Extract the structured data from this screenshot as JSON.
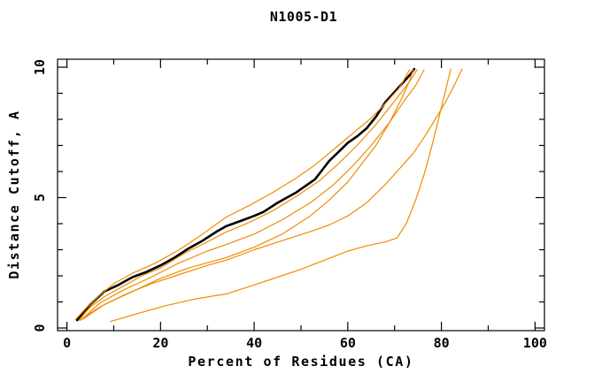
{
  "colors": {
    "background": "#ffffff",
    "axis": "#000000",
    "highlight_series": "#000000",
    "comparison_series": "#f08c00"
  },
  "chart_data": {
    "type": "line",
    "title": "N1005-D1",
    "xlabel": "Percent of Residues (CA)",
    "ylabel": "Distance Cutoff, A",
    "xlim": [
      -2,
      102
    ],
    "ylim": [
      -0.1,
      10.3
    ],
    "grid": false,
    "legend": "none",
    "xticks_major": [
      0,
      20,
      40,
      60,
      80,
      100
    ],
    "xticks_minor": [
      10,
      30,
      50,
      70,
      90
    ],
    "yticks_major": [
      0,
      5,
      10
    ],
    "yticks_minor": [
      1,
      2,
      3,
      4,
      6,
      7,
      8,
      9
    ],
    "series": [
      {
        "name": "highlight-model-black",
        "color": "#000000",
        "width": 2.6,
        "points": [
          [
            2.2,
            0.3
          ],
          [
            3.5,
            0.6
          ],
          [
            5,
            0.9
          ],
          [
            6.5,
            1.15
          ],
          [
            8,
            1.4
          ],
          [
            11,
            1.65
          ],
          [
            14,
            1.95
          ],
          [
            17,
            2.15
          ],
          [
            20,
            2.4
          ],
          [
            23,
            2.7
          ],
          [
            26,
            3.05
          ],
          [
            29,
            3.35
          ],
          [
            32,
            3.7
          ],
          [
            34,
            3.9
          ],
          [
            37,
            4.1
          ],
          [
            40,
            4.3
          ],
          [
            42,
            4.45
          ],
          [
            45,
            4.8
          ],
          [
            47,
            5.0
          ],
          [
            49,
            5.2
          ],
          [
            51,
            5.45
          ],
          [
            53,
            5.7
          ],
          [
            54.5,
            6.05
          ],
          [
            56,
            6.4
          ],
          [
            58,
            6.75
          ],
          [
            60,
            7.1
          ],
          [
            62,
            7.35
          ],
          [
            64,
            7.65
          ],
          [
            66,
            8.1
          ],
          [
            68,
            8.65
          ],
          [
            70,
            9.05
          ],
          [
            72,
            9.45
          ],
          [
            73.5,
            9.75
          ],
          [
            74.2,
            9.93
          ]
        ]
      },
      {
        "name": "comparison-model-1",
        "color": "#f08c00",
        "width": 1.2,
        "points": [
          [
            1.8,
            0.32
          ],
          [
            4,
            0.75
          ],
          [
            7,
            1.25
          ],
          [
            10,
            1.7
          ],
          [
            14,
            2.1
          ],
          [
            19,
            2.5
          ],
          [
            24,
            3.0
          ],
          [
            29,
            3.6
          ],
          [
            34,
            4.25
          ],
          [
            39,
            4.7
          ],
          [
            44,
            5.2
          ],
          [
            49,
            5.75
          ],
          [
            53,
            6.25
          ],
          [
            57,
            6.85
          ],
          [
            61,
            7.45
          ],
          [
            65,
            8.05
          ],
          [
            68,
            8.6
          ],
          [
            71,
            9.2
          ],
          [
            73.2,
            9.9
          ]
        ]
      },
      {
        "name": "comparison-model-2",
        "color": "#f08c00",
        "width": 1.2,
        "points": [
          [
            2.5,
            0.28
          ],
          [
            5,
            0.8
          ],
          [
            8,
            1.2
          ],
          [
            12,
            1.6
          ],
          [
            16,
            2.0
          ],
          [
            20,
            2.3
          ],
          [
            25,
            2.85
          ],
          [
            30,
            3.3
          ],
          [
            34,
            3.68
          ],
          [
            39,
            4.05
          ],
          [
            44,
            4.5
          ],
          [
            49,
            5.05
          ],
          [
            54,
            5.65
          ],
          [
            58,
            6.3
          ],
          [
            62,
            7.0
          ],
          [
            66,
            7.8
          ],
          [
            70,
            8.7
          ],
          [
            73,
            9.4
          ],
          [
            74.8,
            9.9
          ]
        ]
      },
      {
        "name": "comparison-model-3",
        "color": "#f08c00",
        "width": 1.2,
        "points": [
          [
            3,
            0.3
          ],
          [
            7,
            0.95
          ],
          [
            12,
            1.45
          ],
          [
            18,
            1.95
          ],
          [
            24,
            2.5
          ],
          [
            30,
            2.95
          ],
          [
            34,
            3.2
          ],
          [
            40,
            3.6
          ],
          [
            46,
            4.15
          ],
          [
            52,
            4.8
          ],
          [
            57,
            5.5
          ],
          [
            61,
            6.2
          ],
          [
            65,
            7.0
          ],
          [
            69,
            7.9
          ],
          [
            72,
            8.7
          ],
          [
            74.5,
            9.3
          ],
          [
            76.3,
            9.9
          ]
        ]
      },
      {
        "name": "comparison-model-4",
        "color": "#f08c00",
        "width": 1.2,
        "points": [
          [
            3.5,
            0.35
          ],
          [
            8,
            0.9
          ],
          [
            14,
            1.4
          ],
          [
            20,
            1.9
          ],
          [
            26,
            2.3
          ],
          [
            31,
            2.55
          ],
          [
            34,
            2.7
          ],
          [
            40,
            3.1
          ],
          [
            46,
            3.6
          ],
          [
            52,
            4.3
          ],
          [
            56,
            4.9
          ],
          [
            60,
            5.6
          ],
          [
            63,
            6.3
          ],
          [
            66,
            7.0
          ],
          [
            69,
            7.9
          ],
          [
            71.5,
            8.8
          ],
          [
            73,
            9.4
          ],
          [
            74,
            9.9
          ]
        ]
      },
      {
        "name": "comparison-model-5",
        "color": "#f08c00",
        "width": 1.2,
        "points": [
          [
            2.8,
            0.3
          ],
          [
            7,
            0.8
          ],
          [
            12,
            1.25
          ],
          [
            18,
            1.7
          ],
          [
            24,
            2.05
          ],
          [
            30,
            2.4
          ],
          [
            34,
            2.6
          ],
          [
            40,
            3.0
          ],
          [
            46,
            3.35
          ],
          [
            52,
            3.7
          ],
          [
            56,
            3.95
          ],
          [
            60,
            4.3
          ],
          [
            64,
            4.8
          ],
          [
            68,
            5.5
          ],
          [
            71,
            6.1
          ],
          [
            74,
            6.7
          ],
          [
            77,
            7.5
          ],
          [
            79,
            8.1
          ],
          [
            81,
            8.7
          ],
          [
            83,
            9.4
          ],
          [
            84.4,
            9.93
          ]
        ]
      },
      {
        "name": "comparison-model-6",
        "color": "#f08c00",
        "width": 1.2,
        "points": [
          [
            9.3,
            0.25
          ],
          [
            15,
            0.55
          ],
          [
            21,
            0.85
          ],
          [
            27,
            1.1
          ],
          [
            31,
            1.22
          ],
          [
            34,
            1.3
          ],
          [
            40,
            1.65
          ],
          [
            45,
            1.95
          ],
          [
            50,
            2.25
          ],
          [
            55,
            2.6
          ],
          [
            60,
            2.95
          ],
          [
            64,
            3.15
          ],
          [
            68,
            3.3
          ],
          [
            70.5,
            3.45
          ],
          [
            72.5,
            4.0
          ],
          [
            74.5,
            4.9
          ],
          [
            76.5,
            6.0
          ],
          [
            78,
            7.0
          ],
          [
            79.5,
            8.1
          ],
          [
            81,
            9.2
          ],
          [
            82,
            9.93
          ]
        ]
      }
    ]
  }
}
